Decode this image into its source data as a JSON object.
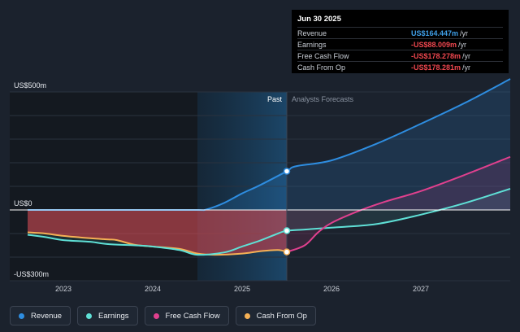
{
  "tooltip": {
    "date": "Jun 30 2025",
    "rows": [
      {
        "label": "Revenue",
        "value": "US$164.447m",
        "unit": "/yr",
        "color": "#3f9fe8"
      },
      {
        "label": "Earnings",
        "value": "-US$88.009m",
        "unit": "/yr",
        "color": "#f0474f"
      },
      {
        "label": "Free Cash Flow",
        "value": "-US$178.278m",
        "unit": "/yr",
        "color": "#f0474f"
      },
      {
        "label": "Cash From Op",
        "value": "-US$178.281m",
        "unit": "/yr",
        "color": "#f0474f"
      }
    ]
  },
  "legend": [
    {
      "label": "Revenue",
      "color": "#2e8de0"
    },
    {
      "label": "Earnings",
      "color": "#5fe0d6"
    },
    {
      "label": "Free Cash Flow",
      "color": "#e0408e"
    },
    {
      "label": "Cash From Op",
      "color": "#f5b055"
    }
  ],
  "chart_data": {
    "type": "line",
    "ylim": [
      -300,
      500
    ],
    "xlim": [
      2022.4,
      2028.0
    ],
    "y_ticks": [
      {
        "value": 500,
        "label": "US$500m"
      },
      {
        "value": 0,
        "label": "US$0"
      },
      {
        "value": -300,
        "label": "-US$300m"
      }
    ],
    "x_ticks": [
      {
        "value": 2023,
        "label": "2023"
      },
      {
        "value": 2024,
        "label": "2024"
      },
      {
        "value": 2025,
        "label": "2025"
      },
      {
        "value": 2026,
        "label": "2026"
      },
      {
        "value": 2027,
        "label": "2027"
      }
    ],
    "past_label": "Past",
    "forecast_label": "Analysts Forecasts",
    "divider_x": 2025.5,
    "highlight_start_x": 2024.5,
    "series": [
      {
        "name": "Revenue",
        "color": "#2e8de0",
        "x": [
          2022.6,
          2023.0,
          2023.5,
          2024.0,
          2024.5,
          2024.6,
          2024.8,
          2025.0,
          2025.2,
          2025.5,
          2025.6,
          2026.0,
          2026.5,
          2027.0,
          2027.5,
          2028.0
        ],
        "y": [
          0,
          0,
          0,
          0,
          0,
          2,
          30,
          70,
          105,
          164,
          185,
          210,
          280,
          365,
          455,
          555
        ]
      },
      {
        "name": "Earnings",
        "color": "#5fe0d6",
        "x": [
          2022.6,
          2022.8,
          2023.0,
          2023.3,
          2023.5,
          2023.8,
          2024.0,
          2024.3,
          2024.5,
          2024.8,
          2025.0,
          2025.2,
          2025.4,
          2025.5,
          2025.7,
          2026.0,
          2026.5,
          2027.0,
          2027.5,
          2028.0
        ],
        "y": [
          -105,
          -115,
          -128,
          -135,
          -145,
          -150,
          -155,
          -170,
          -190,
          -180,
          -155,
          -130,
          -100,
          -88,
          -83,
          -75,
          -60,
          -20,
          30,
          90
        ]
      },
      {
        "name": "Free Cash Flow",
        "color": "#e0408e",
        "x": [
          2025.5,
          2025.7,
          2025.85,
          2026.0,
          2026.3,
          2026.6,
          2027.0,
          2027.5,
          2028.0
        ],
        "y": [
          -178,
          -150,
          -95,
          -55,
          -5,
          35,
          80,
          150,
          225
        ]
      },
      {
        "name": "Cash From Op",
        "color": "#f5b055",
        "x": [
          2022.6,
          2022.8,
          2023.0,
          2023.3,
          2023.5,
          2023.6,
          2023.8,
          2024.0,
          2024.3,
          2024.5,
          2024.7,
          2025.0,
          2025.2,
          2025.4,
          2025.5
        ],
        "y": [
          -95,
          -100,
          -110,
          -120,
          -125,
          -128,
          -148,
          -155,
          -165,
          -185,
          -190,
          -185,
          -175,
          -170,
          -178
        ]
      }
    ]
  }
}
